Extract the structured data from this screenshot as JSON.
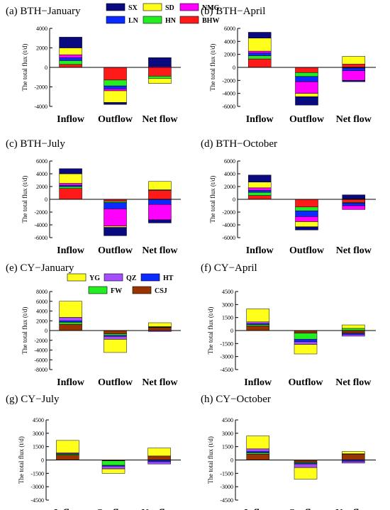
{
  "legends": {
    "bth": [
      {
        "name": "SX",
        "color": "#0a0a80"
      },
      {
        "name": "SD",
        "color": "#ffff1a"
      },
      {
        "name": "NMG",
        "color": "#ff00ff"
      },
      {
        "name": "LN",
        "color": "#0a2aff"
      },
      {
        "name": "HN",
        "color": "#22ee22"
      },
      {
        "name": "BHW",
        "color": "#ff1a1a"
      }
    ],
    "cy": [
      {
        "name": "YG",
        "color": "#ffff1a"
      },
      {
        "name": "QZ",
        "color": "#a64dff"
      },
      {
        "name": "HT",
        "color": "#0a2aff"
      },
      {
        "name": "FW",
        "color": "#22ee22"
      },
      {
        "name": "CSJ",
        "color": "#993300"
      }
    ]
  },
  "chart_data": [
    {
      "type": "bar",
      "title": "(a) BTH−January",
      "ylabel": "The total flux (t/d)",
      "categories": [
        "Inflow",
        "Outflow",
        "Net flow"
      ],
      "ylim": [
        -4000,
        4000
      ],
      "yticks": [
        -4000,
        -2000,
        0,
        2000,
        4000
      ],
      "series": [
        {
          "name": "BHW",
          "values": [
            300,
            -1300,
            -900
          ]
        },
        {
          "name": "HN",
          "values": [
            400,
            -600,
            -250
          ]
        },
        {
          "name": "LN",
          "values": [
            300,
            -300,
            0
          ]
        },
        {
          "name": "NMG",
          "values": [
            300,
            -200,
            100
          ]
        },
        {
          "name": "SD",
          "values": [
            700,
            -1200,
            -500
          ]
        },
        {
          "name": "SX",
          "values": [
            1100,
            -200,
            900
          ]
        }
      ]
    },
    {
      "type": "bar",
      "title": "(b) BTH−April",
      "ylabel": "The total flux (t/d)",
      "categories": [
        "Inflow",
        "Outflow",
        "Net flow"
      ],
      "ylim": [
        -6000,
        6000
      ],
      "yticks": [
        -6000,
        -4000,
        -2000,
        0,
        2000,
        4000,
        6000
      ],
      "series": [
        {
          "name": "BHW",
          "values": [
            1300,
            -800,
            500
          ]
        },
        {
          "name": "HN",
          "values": [
            500,
            -600,
            -100
          ]
        },
        {
          "name": "LN",
          "values": [
            400,
            -800,
            -400
          ]
        },
        {
          "name": "NMG",
          "values": [
            300,
            -1800,
            -1500
          ]
        },
        {
          "name": "SD",
          "values": [
            2000,
            -500,
            1200
          ]
        },
        {
          "name": "SX",
          "values": [
            900,
            -1300,
            -200
          ]
        }
      ]
    },
    {
      "type": "bar",
      "title": "(c) BTH−July",
      "ylabel": "The total flux (t/d)",
      "categories": [
        "Inflow",
        "Outflow",
        "Net flow"
      ],
      "ylim": [
        -6000,
        6000
      ],
      "yticks": [
        -6000,
        -4000,
        -2000,
        0,
        2000,
        4000,
        6000
      ],
      "series": [
        {
          "name": "BHW",
          "values": [
            1700,
            -300,
            1400
          ]
        },
        {
          "name": "HN",
          "values": [
            300,
            -200,
            100
          ]
        },
        {
          "name": "LN",
          "values": [
            200,
            -1000,
            -800
          ]
        },
        {
          "name": "NMG",
          "values": [
            300,
            -2700,
            -2400
          ]
        },
        {
          "name": "SD",
          "values": [
            1500,
            -200,
            1300
          ]
        },
        {
          "name": "SX",
          "values": [
            800,
            -1300,
            -500
          ]
        }
      ]
    },
    {
      "type": "bar",
      "title": "(d) BTH−October",
      "ylabel": "The total flux (t/d)",
      "categories": [
        "Inflow",
        "Outflow",
        "Net flow"
      ],
      "ylim": [
        -6000,
        6000
      ],
      "yticks": [
        -6000,
        -4000,
        -2000,
        0,
        2000,
        4000,
        6000
      ],
      "series": [
        {
          "name": "BHW",
          "values": [
            600,
            -1200,
            -500
          ]
        },
        {
          "name": "HN",
          "values": [
            500,
            -600,
            -100
          ]
        },
        {
          "name": "LN",
          "values": [
            300,
            -900,
            -400
          ]
        },
        {
          "name": "NMG",
          "values": [
            400,
            -800,
            -600
          ]
        },
        {
          "name": "SD",
          "values": [
            900,
            -800,
            100
          ]
        },
        {
          "name": "SX",
          "values": [
            1100,
            -500,
            600
          ]
        }
      ]
    },
    {
      "type": "bar",
      "title": "(e) CY−January",
      "ylabel": "The total flux (t/d)",
      "categories": [
        "Inflow",
        "Outflow",
        "Net flow"
      ],
      "ylim": [
        -8000,
        8000
      ],
      "yticks": [
        -8000,
        -6000,
        -4000,
        -2000,
        0,
        2000,
        4000,
        6000,
        8000
      ],
      "series": [
        {
          "name": "CSJ",
          "values": [
            1300,
            -700,
            600
          ]
        },
        {
          "name": "FW",
          "values": [
            400,
            -300,
            100
          ]
        },
        {
          "name": "HT",
          "values": [
            300,
            -200,
            100
          ]
        },
        {
          "name": "QZ",
          "values": [
            700,
            -600,
            -200
          ]
        },
        {
          "name": "YG",
          "values": [
            3300,
            -2700,
            800
          ]
        }
      ]
    },
    {
      "type": "bar",
      "title": "(f) CY−April",
      "ylabel": "The total flux (t/d)",
      "categories": [
        "Inflow",
        "Outflow",
        "Net flow"
      ],
      "ylim": [
        -4500,
        4500
      ],
      "yticks": [
        -4500,
        -3000,
        -1500,
        0,
        1500,
        3000,
        4500
      ],
      "series": [
        {
          "name": "CSJ",
          "values": [
            550,
            -300,
            -300
          ]
        },
        {
          "name": "FW",
          "values": [
            150,
            -700,
            250
          ]
        },
        {
          "name": "HT",
          "values": [
            100,
            -300,
            -150
          ]
        },
        {
          "name": "QZ",
          "values": [
            200,
            -300,
            -200
          ]
        },
        {
          "name": "YG",
          "values": [
            1500,
            -1100,
            400
          ]
        }
      ]
    },
    {
      "type": "bar",
      "title": "(g) CY−July",
      "ylabel": "The total flux (t/d)",
      "categories": [
        "Inflow",
        "Outflow",
        "Net flow"
      ],
      "ylim": [
        -4500,
        4500
      ],
      "yticks": [
        -4500,
        -3000,
        -1500,
        0,
        1500,
        3000,
        4500
      ],
      "series": [
        {
          "name": "CSJ",
          "values": [
            550,
            -100,
            450
          ]
        },
        {
          "name": "FW",
          "values": [
            100,
            -500,
            0
          ]
        },
        {
          "name": "HT",
          "values": [
            50,
            -100,
            -200
          ]
        },
        {
          "name": "QZ",
          "values": [
            100,
            -300,
            -250
          ]
        },
        {
          "name": "YG",
          "values": [
            1400,
            -500,
            900
          ]
        }
      ]
    },
    {
      "type": "bar",
      "title": "(h) CY−October",
      "ylabel": "The total flux (t/d)",
      "categories": [
        "Inflow",
        "Outflow",
        "Net flow"
      ],
      "ylim": [
        -4500,
        4500
      ],
      "yticks": [
        -4500,
        -3000,
        -1500,
        0,
        1500,
        3000,
        4500
      ],
      "series": [
        {
          "name": "CSJ",
          "values": [
            650,
            -250,
            650
          ]
        },
        {
          "name": "FW",
          "values": [
            150,
            -100,
            50
          ]
        },
        {
          "name": "HT",
          "values": [
            150,
            -100,
            -150
          ]
        },
        {
          "name": "QZ",
          "values": [
            300,
            -400,
            -200
          ]
        },
        {
          "name": "YG",
          "values": [
            1450,
            -1300,
            250
          ]
        }
      ]
    }
  ]
}
